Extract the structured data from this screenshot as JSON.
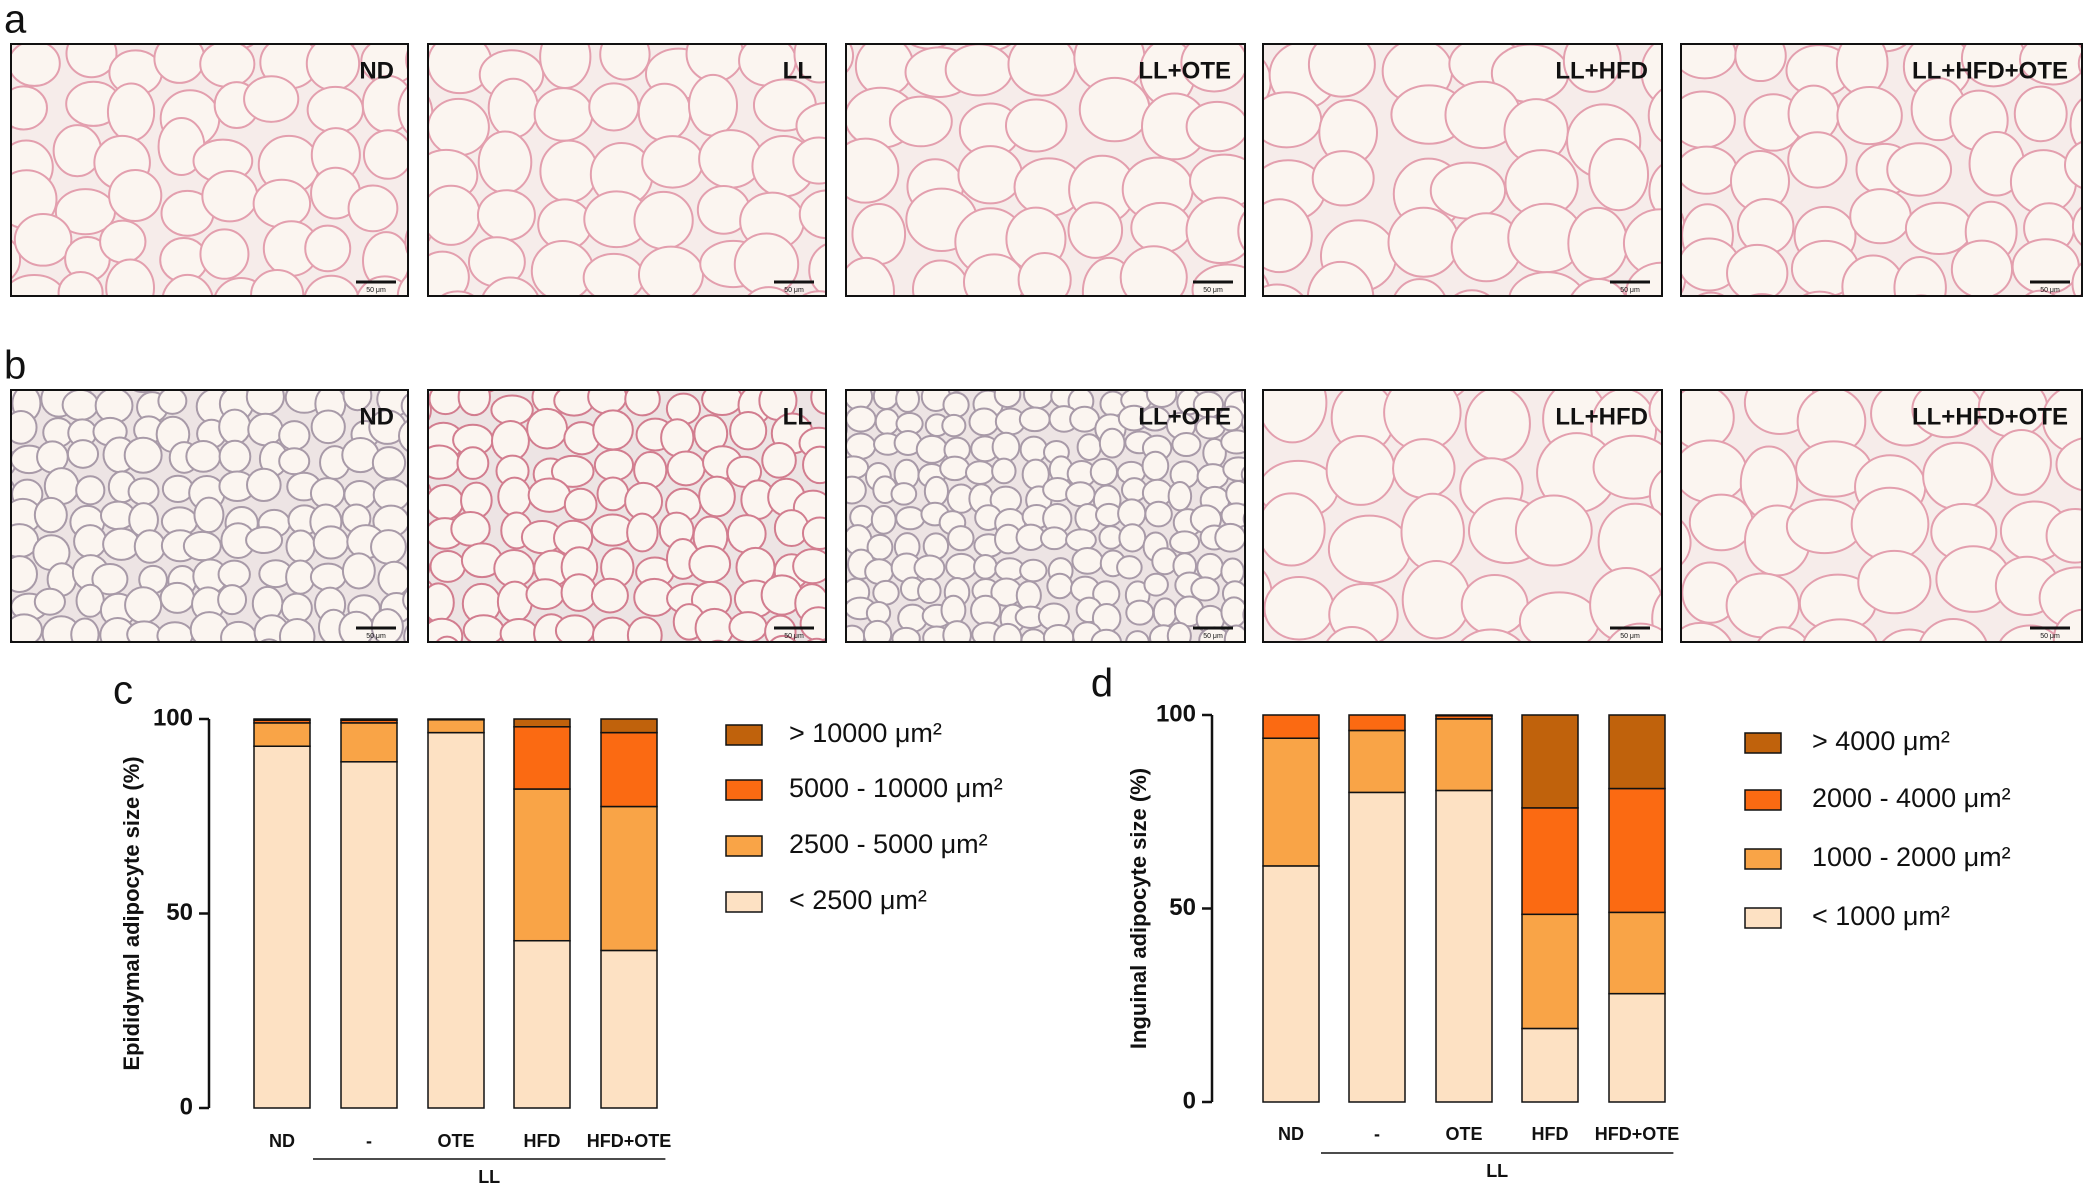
{
  "panels": [
    {
      "letter": "a",
      "images": [
        {
          "label": "ND",
          "scale_bar": "50 μm"
        },
        {
          "label": "LL",
          "scale_bar": "50 μm"
        },
        {
          "label": "LL+OTE",
          "scale_bar": "50 μm"
        },
        {
          "label": "LL+HFD",
          "scale_bar": "50 μm"
        },
        {
          "label": "LL+HFD+OTE",
          "scale_bar": "50 μm"
        }
      ]
    },
    {
      "letter": "b",
      "images": [
        {
          "label": "ND",
          "scale_bar": "50 μm"
        },
        {
          "label": "LL",
          "scale_bar": "50 μm"
        },
        {
          "label": "LL+OTE",
          "scale_bar": "50 μm"
        },
        {
          "label": "LL+HFD",
          "scale_bar": "50 μm"
        },
        {
          "label": "LL+HFD+OTE",
          "scale_bar": "50 μm"
        }
      ]
    }
  ],
  "chart_data": [
    {
      "type": "stacked_bar",
      "panel": "c",
      "y_label": "Epididymal adipocyte size (%)",
      "categories": [
        "ND",
        "-",
        "OTE",
        "HFD",
        "HFD+OTE"
      ],
      "group_label": "LL",
      "ylim": [
        0,
        100
      ],
      "yticks": [
        0,
        50,
        100
      ],
      "series": [
        {
          "name": "< 2500 μm²",
          "color": "#fde1c3",
          "values": [
            93,
            89,
            96.5,
            43,
            40.5
          ]
        },
        {
          "name": "2500 - 5000 μm²",
          "color": "#f9a447",
          "values": [
            6,
            10,
            3.3,
            39,
            37
          ]
        },
        {
          "name": "5000 - 10000 μm²",
          "color": "#fb6a12",
          "values": [
            0.7,
            0.7,
            0.2,
            16,
            19
          ]
        },
        {
          "name": "> 10000 μm²",
          "color": "#c0620c",
          "values": [
            0.3,
            0.3,
            0,
            2,
            3.5
          ]
        }
      ]
    },
    {
      "type": "stacked_bar",
      "panel": "d",
      "y_label": "Inguinal adipocyte size (%)",
      "categories": [
        "ND",
        "-",
        "OTE",
        "HFD",
        "HFD+OTE"
      ],
      "group_label": "LL",
      "ylim": [
        0,
        100
      ],
      "yticks": [
        0,
        50,
        100
      ],
      "series": [
        {
          "name": "< 1000 μm²",
          "color": "#fde1c3",
          "values": [
            61,
            80,
            80.5,
            19,
            28
          ]
        },
        {
          "name": "1000 - 2000 μm²",
          "color": "#f9a447",
          "values": [
            33,
            16,
            18.5,
            29.5,
            21
          ]
        },
        {
          "name": "2000 - 4000 μm²",
          "color": "#fb6a12",
          "values": [
            6,
            4,
            0.8,
            27.5,
            32
          ]
        },
        {
          "name": "> 4000 μm²",
          "color": "#c0620c",
          "values": [
            0,
            0,
            0.2,
            24,
            19
          ]
        }
      ]
    }
  ]
}
